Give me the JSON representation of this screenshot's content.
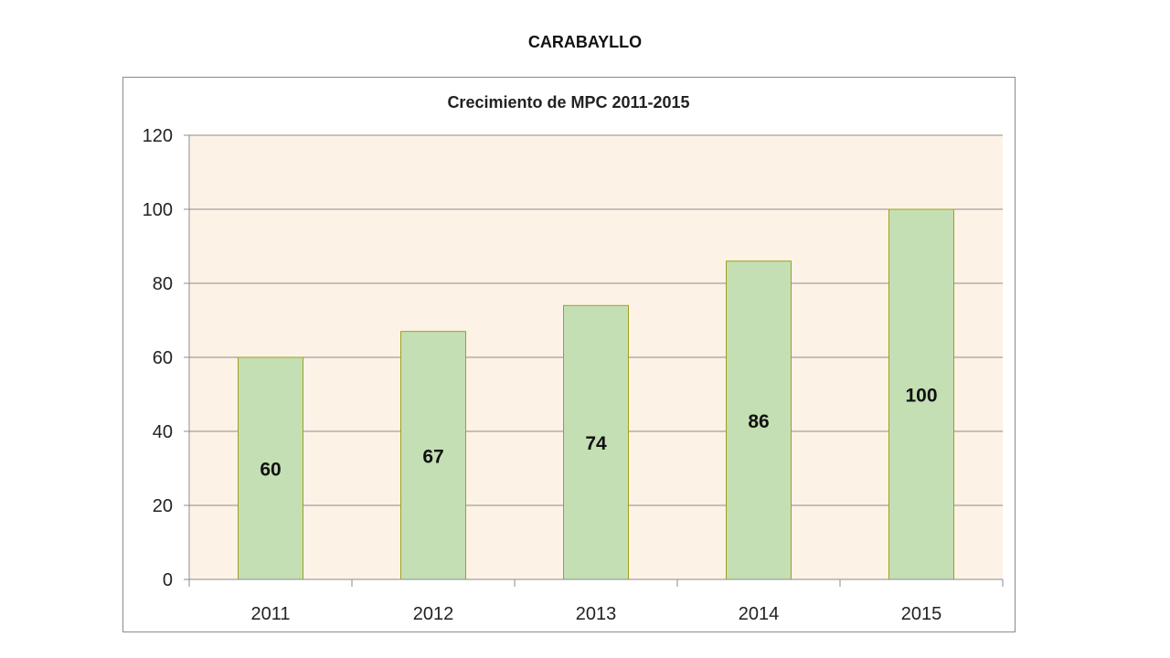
{
  "page": {
    "title": "CARABAYLLO"
  },
  "chart_data": {
    "type": "bar",
    "title": "Crecimiento de MPC 2011-2015",
    "xlabel": "",
    "ylabel": "",
    "categories": [
      "2011",
      "2012",
      "2013",
      "2014",
      "2015"
    ],
    "values": [
      60,
      67,
      74,
      86,
      100
    ],
    "data_labels": [
      "60",
      "67",
      "74",
      "86",
      "100"
    ],
    "y_ticks": [
      "0",
      "20",
      "40",
      "60",
      "80",
      "100",
      "120"
    ],
    "ylim": [
      0,
      120
    ],
    "grid": true,
    "legend": "none",
    "colors": {
      "bar_fill": "#c4dfb3",
      "bar_stroke": "#a0a020",
      "plot_background": "#fdf2e6",
      "gridline": "#8c8c8c"
    }
  }
}
